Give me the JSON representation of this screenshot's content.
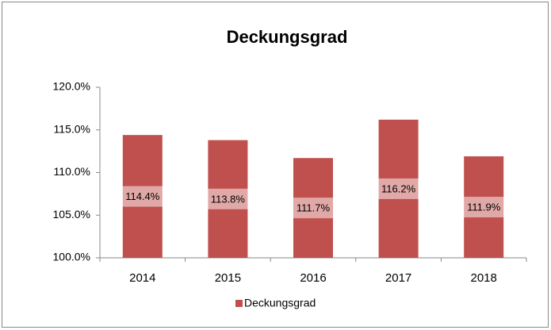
{
  "chart_data": {
    "type": "bar",
    "title": "Deckungsgrad",
    "categories": [
      "2014",
      "2015",
      "2016",
      "2017",
      "2018"
    ],
    "series": [
      {
        "name": "Deckungsgrad",
        "color": "#c0504d",
        "values": [
          114.4,
          113.8,
          111.7,
          116.2,
          111.9
        ],
        "value_labels": [
          "114.4%",
          "113.8%",
          "111.7%",
          "116.2%",
          "111.9%"
        ]
      }
    ],
    "ylim": [
      100,
      120
    ],
    "yticks": [
      {
        "value": 100,
        "label": "100.0%"
      },
      {
        "value": 105,
        "label": "105.0%"
      },
      {
        "value": 110,
        "label": "110.0%"
      },
      {
        "value": 115,
        "label": "115.0%"
      },
      {
        "value": 120,
        "label": "120.0%"
      }
    ],
    "grid": false,
    "legend": "bottom"
  }
}
